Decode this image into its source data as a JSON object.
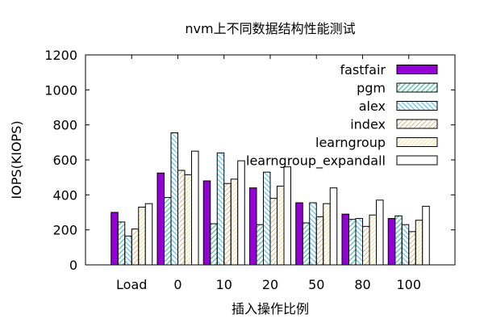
{
  "chart_data": {
    "type": "bar",
    "title": "nvm上不同数据结构性能测试",
    "xlabel": "插入操作比例",
    "ylabel": "IOPS(KIOPS)",
    "ylim": [
      0,
      1200
    ],
    "yticks": [
      0,
      200,
      400,
      600,
      800,
      1000,
      1200
    ],
    "grid": false,
    "legend_position": "top-right",
    "categories": [
      "Load",
      "0",
      "10",
      "20",
      "50",
      "80",
      "100"
    ],
    "series": [
      {
        "name": "fastfair",
        "fill": "solid",
        "color": "#9400d3",
        "values": [
          300,
          525,
          480,
          440,
          355,
          290,
          265
        ]
      },
      {
        "name": "pgm",
        "fill": "hatch",
        "color": "#5fc4b0",
        "values": [
          245,
          385,
          235,
          230,
          240,
          260,
          280
        ]
      },
      {
        "name": "alex",
        "fill": "hatch",
        "color": "#72c8e8",
        "values": [
          165,
          755,
          640,
          530,
          355,
          265,
          230
        ]
      },
      {
        "name": "index",
        "fill": "hatch",
        "color": "#e6b870",
        "values": [
          205,
          540,
          465,
          380,
          275,
          220,
          190
        ]
      },
      {
        "name": "learngroup",
        "fill": "hatch",
        "color": "#f0dc90",
        "values": [
          330,
          515,
          490,
          450,
          350,
          285,
          255
        ]
      },
      {
        "name": "learngroup_expandall",
        "fill": "solid",
        "color": "#ffffff",
        "values": [
          350,
          650,
          595,
          560,
          440,
          370,
          335
        ]
      }
    ]
  }
}
